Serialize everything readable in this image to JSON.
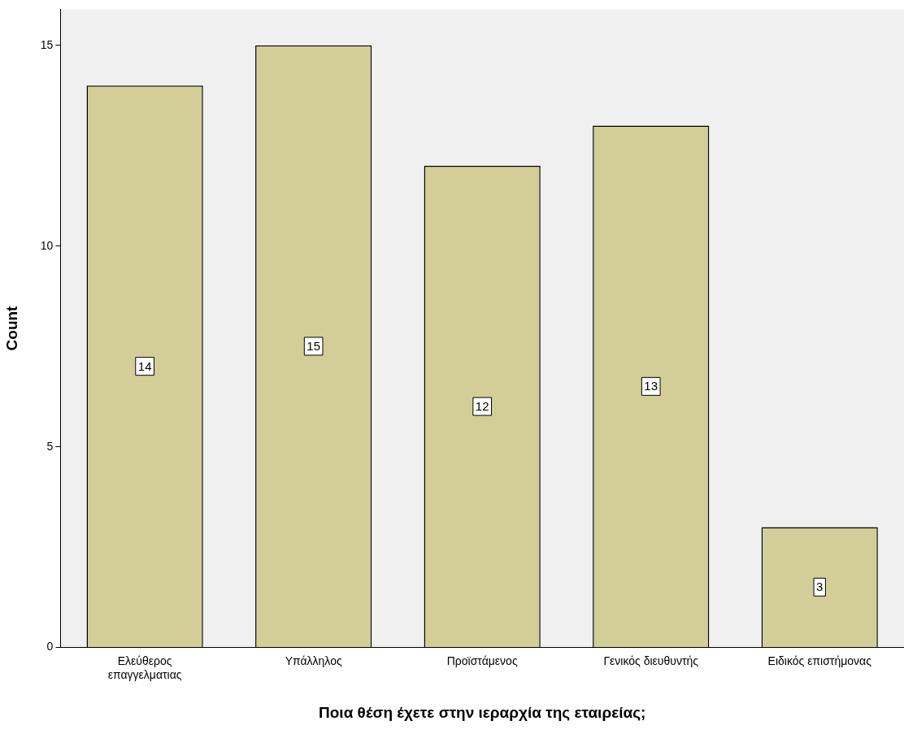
{
  "chart_data": {
    "type": "bar",
    "xlabel": "Ποια θέση έχετε στην ιεραρχία της εταιρείας;",
    "ylabel": "Count",
    "categories": [
      "Ελεύθερος\nεπαγγελματιας",
      "Υπάλληλος",
      "Προϊστάμενος",
      "Γενικός διευθυντής",
      "Ειδικός επιστήμονας"
    ],
    "values": [
      14,
      15,
      12,
      13,
      3
    ],
    "color": "#d3ce97",
    "ylim": [
      0,
      15.9
    ],
    "yticks": [
      0,
      5,
      10,
      15
    ],
    "grid": false,
    "legend": false,
    "data_labels": true
  }
}
